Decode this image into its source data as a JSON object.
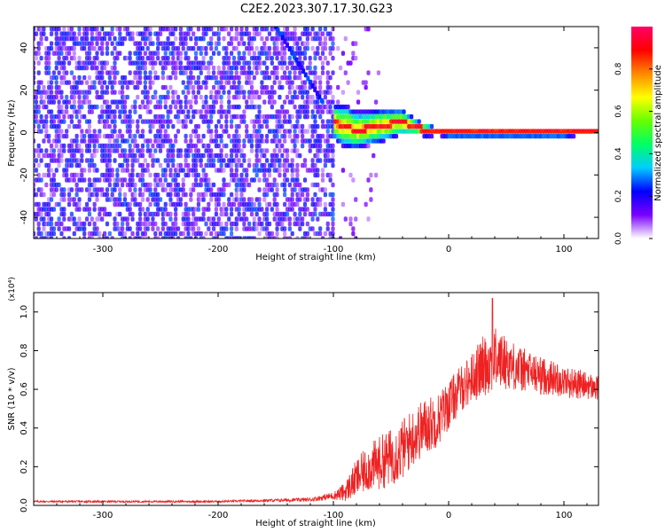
{
  "title": "C2E2.2023.307.17.30.G23",
  "colors": {
    "snr_line": "#ee2222",
    "spectrogram_background_low": "#ffffff",
    "spectrogram_noise": "#7a18e8",
    "spectrogram_trace_core": "#ff2200",
    "axes": "#000000"
  },
  "chart_data": [
    {
      "type": "heatmap",
      "xlabel": "Height of straight line (km)",
      "ylabel": "Frequency (Hz)",
      "xlim": [
        -360,
        130
      ],
      "ylim": [
        -50,
        50
      ],
      "xticks": [
        -300,
        -200,
        -100,
        0,
        100
      ],
      "yticks": [
        -40,
        -20,
        0,
        20,
        40
      ],
      "colorbar": {
        "label": "Normalized spectral amplitude",
        "range": [
          0.0,
          1.0
        ],
        "ticks": [
          "0.0",
          "0.2",
          "0.4",
          "0.6",
          "0.8"
        ],
        "colormap": [
          "#ffffff",
          "#7a00ff",
          "#0000ff",
          "#00ccff",
          "#00ff66",
          "#66ff00",
          "#ffff00",
          "#ff8800",
          "#ff0000",
          "#ff0066"
        ]
      },
      "features": {
        "noise_region_x": [
          -360,
          -100
        ],
        "trace": {
          "x": [
            -100,
            -90,
            -80,
            -70,
            -60,
            -50,
            -40,
            -30,
            -20,
            -10,
            0,
            20,
            40,
            60,
            80,
            100,
            130
          ],
          "freq_center": [
            5,
            3,
            1,
            2,
            3,
            4,
            5,
            3,
            1,
            0.5,
            0,
            0,
            0,
            0,
            0,
            0,
            0
          ],
          "spread_hz": [
            8,
            10,
            9,
            8,
            8,
            7,
            6,
            4,
            3,
            2,
            2,
            2,
            2,
            2,
            2,
            2,
            1
          ]
        },
        "streak": {
          "x": [
            -150,
            -110
          ],
          "freq": [
            50,
            15
          ]
        }
      }
    },
    {
      "type": "line",
      "xlabel": "Height of straight line (km)",
      "ylabel": "SNR (10 * v/v)",
      "yscale_label": "(x10⁴)",
      "xlim": [
        -360,
        130
      ],
      "ylim": [
        0,
        1.1
      ],
      "xticks": [
        -300,
        -200,
        -100,
        0,
        100
      ],
      "yticks": [
        "0.0",
        "0.2",
        "0.4",
        "0.6",
        "0.8",
        "1.0"
      ],
      "series": [
        {
          "x": [
            -360,
            -300,
            -200,
            -120,
            -100,
            -90,
            -80,
            -70,
            -60,
            -50,
            -40,
            -30,
            -20,
            -10,
            0,
            10,
            20,
            30,
            40,
            50,
            60,
            70,
            80,
            90,
            100,
            110,
            120,
            130
          ],
          "values": [
            0.02,
            0.02,
            0.02,
            0.03,
            0.05,
            0.07,
            0.14,
            0.19,
            0.22,
            0.25,
            0.29,
            0.36,
            0.41,
            0.44,
            0.52,
            0.6,
            0.66,
            0.72,
            0.76,
            0.74,
            0.71,
            0.69,
            0.67,
            0.66,
            0.64,
            0.63,
            0.62,
            0.6
          ],
          "noise_amplitude": [
            0.005,
            0.005,
            0.005,
            0.01,
            0.02,
            0.05,
            0.1,
            0.12,
            0.14,
            0.15,
            0.16,
            0.15,
            0.15,
            0.14,
            0.13,
            0.12,
            0.13,
            0.16,
            0.16,
            0.14,
            0.12,
            0.11,
            0.1,
            0.09,
            0.08,
            0.08,
            0.07,
            0.07
          ],
          "peak": {
            "x": 38,
            "value": 1.07
          }
        }
      ]
    }
  ]
}
